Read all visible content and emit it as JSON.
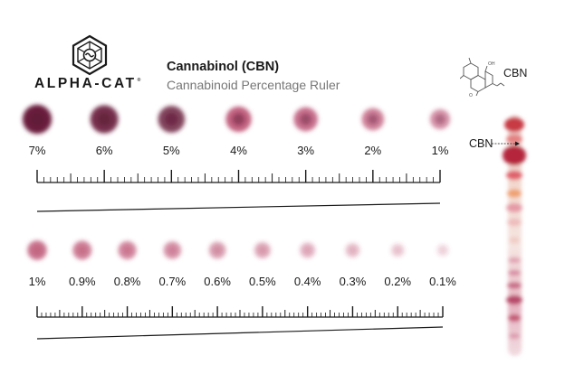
{
  "brand": {
    "name": "ALPHA-CAT",
    "mark": "®"
  },
  "header": {
    "title": "Cannabinol (CBN)",
    "subtitle": "Cannabinoid Percentage Ruler"
  },
  "molecule": {
    "label": "CBN"
  },
  "plate": {
    "lane_label": "CBN"
  },
  "colors": {
    "spot": "#b0305a",
    "spot_dark": "#6a1e3c",
    "ink": "#1a1a1a",
    "muted": "#777777"
  },
  "rows": [
    {
      "labels": [
        "7%",
        "6%",
        "5%",
        "4%",
        "3%",
        "2%",
        "1%"
      ],
      "values": [
        7,
        6,
        5,
        4,
        3,
        2,
        1
      ]
    },
    {
      "labels": [
        "1%",
        "0.9%",
        "0.8%",
        "0.7%",
        "0.6%",
        "0.5%",
        "0.4%",
        "0.3%",
        "0.2%",
        "0.1%"
      ],
      "values": [
        1,
        0.9,
        0.8,
        0.7,
        0.6,
        0.5,
        0.4,
        0.3,
        0.2,
        0.1
      ]
    }
  ]
}
